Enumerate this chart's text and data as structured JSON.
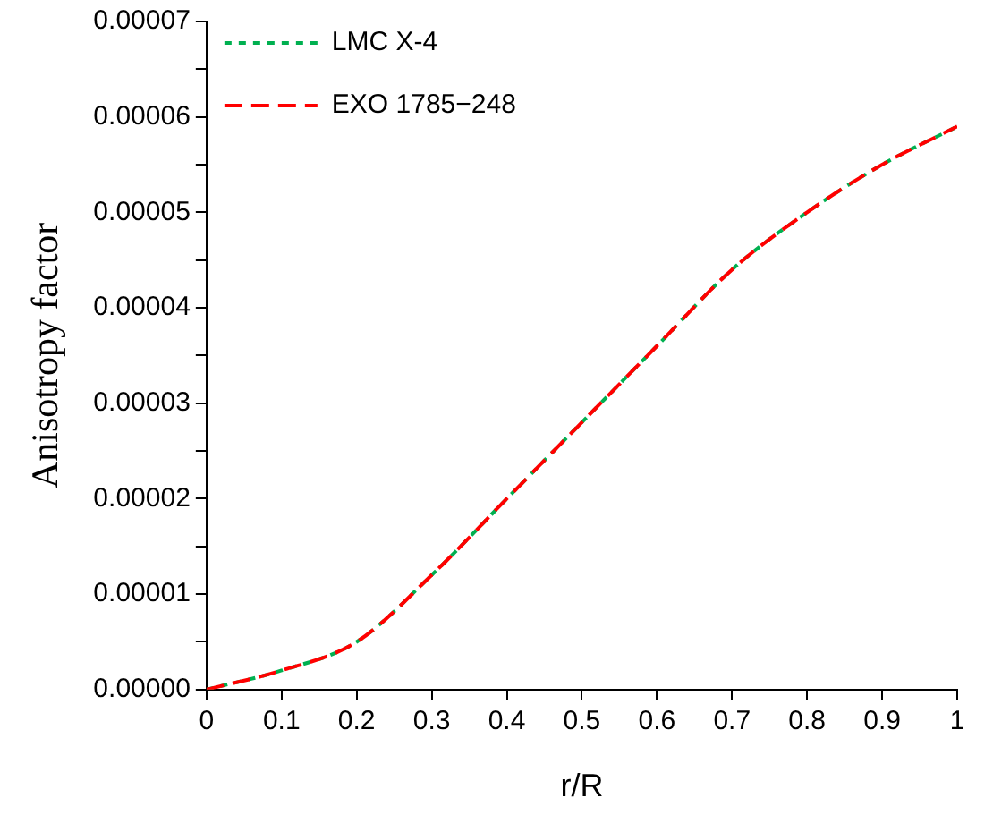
{
  "chart_data": {
    "type": "line",
    "xlabel": "r/R",
    "ylabel": "Anisotropy factor",
    "x": [
      0,
      0.1,
      0.2,
      0.3,
      0.4,
      0.5,
      0.6,
      0.7,
      0.8,
      0.9,
      1
    ],
    "series": [
      {
        "name": "LMC X-4",
        "color": "#00b050",
        "line_style": "dotted",
        "values": [
          0,
          2e-06,
          5e-06,
          1.2e-05,
          2e-05,
          2.8e-05,
          3.6e-05,
          4.4e-05,
          5e-05,
          5.5e-05,
          5.9e-05
        ]
      },
      {
        "name": "EXO 1785−248",
        "color": "#ff0000",
        "line_style": "dashed",
        "values": [
          0,
          2e-06,
          5e-06,
          1.2e-05,
          2e-05,
          2.8e-05,
          3.6e-05,
          4.4e-05,
          5e-05,
          5.5e-05,
          5.9e-05
        ]
      }
    ],
    "xlim": [
      0,
      1
    ],
    "xticks": [
      0,
      0.1,
      0.2,
      0.3,
      0.4,
      0.5,
      0.6,
      0.7,
      0.8,
      0.9,
      1
    ],
    "ylim": [
      0,
      7e-05
    ],
    "yticks": [
      {
        "value": 0,
        "label": "0.00000"
      },
      {
        "value": 5e-06,
        "label": null
      },
      {
        "value": 1e-05,
        "label": "0.00001"
      },
      {
        "value": 1.5e-05,
        "label": null
      },
      {
        "value": 2e-05,
        "label": "0.00002"
      },
      {
        "value": 2.5e-05,
        "label": null
      },
      {
        "value": 3e-05,
        "label": "0.00003"
      },
      {
        "value": 3.5e-05,
        "label": null
      },
      {
        "value": 4e-05,
        "label": "0.00004"
      },
      {
        "value": 4.5e-05,
        "label": null
      },
      {
        "value": 5e-05,
        "label": "0.00005"
      },
      {
        "value": 5.5e-05,
        "label": null
      },
      {
        "value": 6e-05,
        "label": "0.00006"
      },
      {
        "value": 6.5e-05,
        "label": null
      },
      {
        "value": 7e-05,
        "label": "0.00007"
      }
    ],
    "grid": false,
    "legend": "top left",
    "marker": "none"
  }
}
